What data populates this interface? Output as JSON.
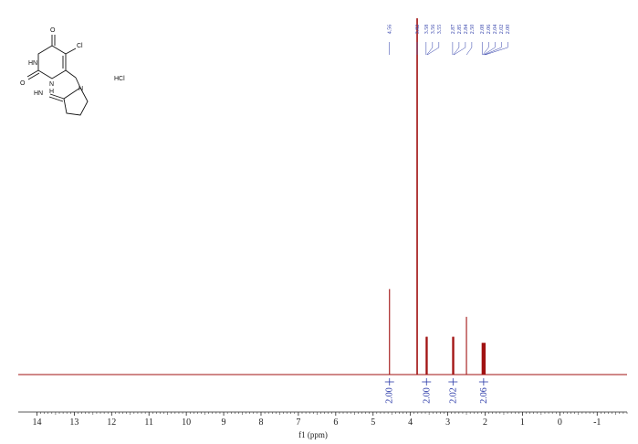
{
  "chart_data": {
    "type": "line",
    "title": "",
    "xlabel": "f1 (ppm)",
    "ylabel": "",
    "xlim": [
      14.5,
      -1.8
    ],
    "x_reversed": true,
    "ticks": [
      "14",
      "13",
      "12",
      "11",
      "10",
      "9",
      "8",
      "7",
      "6",
      "5",
      "4",
      "3",
      "2",
      "1",
      "0",
      "-1"
    ],
    "grid": false,
    "line_color": "#a01010",
    "annotation_color": "#2b3aa8",
    "peaks": [
      {
        "ppm": 4.56,
        "height": 0.24,
        "label": "4.56"
      },
      {
        "ppm": 3.82,
        "height": 1.0,
        "label": "3.82"
      },
      {
        "ppm": 3.58,
        "height": 0.106,
        "label": "3.58"
      },
      {
        "ppm": 3.56,
        "height": 0.106,
        "label": "3.56"
      },
      {
        "ppm": 3.55,
        "height": 0.106,
        "label": "3.55"
      },
      {
        "ppm": 2.87,
        "height": 0.106,
        "label": "2.87"
      },
      {
        "ppm": 2.85,
        "height": 0.106,
        "label": "2.85"
      },
      {
        "ppm": 2.84,
        "height": 0.106,
        "label": "2.84"
      },
      {
        "ppm": 2.5,
        "height": 0.162,
        "label": "2.50"
      },
      {
        "ppm": 2.08,
        "height": 0.089,
        "label": "2.08"
      },
      {
        "ppm": 2.06,
        "height": 0.089,
        "label": "2.06"
      },
      {
        "ppm": 2.04,
        "height": 0.089,
        "label": "2.04"
      },
      {
        "ppm": 2.02,
        "height": 0.089,
        "label": "2.02"
      },
      {
        "ppm": 2.0,
        "height": 0.089,
        "label": "2.00"
      }
    ],
    "integrals": [
      {
        "ppm": 4.56,
        "value": "2.00"
      },
      {
        "ppm": 3.57,
        "value": "2.00"
      },
      {
        "ppm": 2.86,
        "value": "2.02"
      },
      {
        "ppm": 2.04,
        "value": "2.06"
      }
    ],
    "structure_labels": {
      "o_top": "O",
      "cl": "Cl",
      "hn_ring": "HN",
      "o_left": "O",
      "n_bottom": "N",
      "h_bottom": "H",
      "hn_imine": "HN",
      "n_pyrrolidine": "N",
      "salt": "HCl"
    }
  }
}
